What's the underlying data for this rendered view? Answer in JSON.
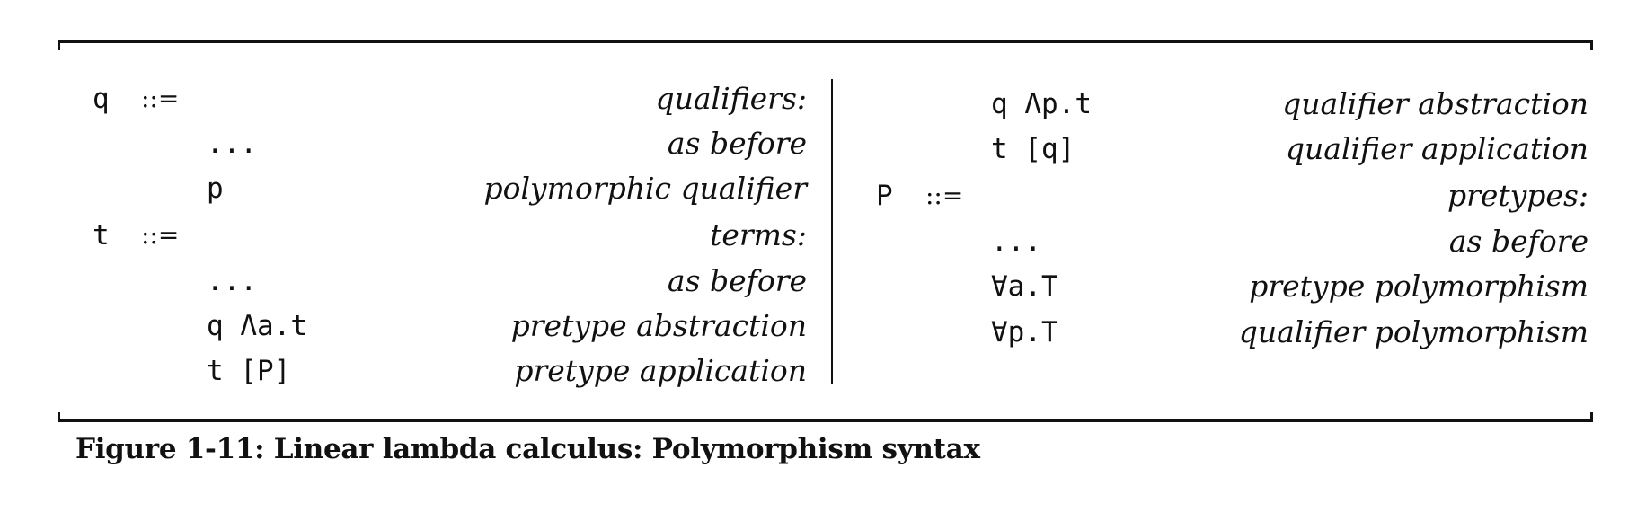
{
  "figure": {
    "left_column": [
      {
        "nt": "q",
        "def": "::=",
        "term": "",
        "desc": "qualifiers:"
      },
      {
        "nt": "",
        "def": "",
        "term": "...",
        "desc": "as before"
      },
      {
        "nt": "",
        "def": "",
        "term": "p",
        "desc": "polymorphic qualifier"
      },
      {
        "nt": "t",
        "def": "::=",
        "term": "",
        "desc": "terms:"
      },
      {
        "nt": "",
        "def": "",
        "term": "...",
        "desc": "as before"
      },
      {
        "nt": "",
        "def": "",
        "term": "q Λa.t",
        "desc": "pretype abstraction"
      },
      {
        "nt": "",
        "def": "",
        "term": "t [P]",
        "desc": "pretype application"
      }
    ],
    "right_column": [
      {
        "nt": "",
        "def": "",
        "term": "q Λp.t",
        "desc": "qualifier abstraction"
      },
      {
        "nt": "",
        "def": "",
        "term": "t [q]",
        "desc": "qualifier application"
      },
      {
        "nt": "P",
        "def": "::=",
        "term": "",
        "desc": "pretypes:"
      },
      {
        "nt": "",
        "def": "",
        "term": "...",
        "desc": "as before"
      },
      {
        "nt": "",
        "def": "",
        "term": "∀a.T",
        "desc": "pretype polymorphism"
      },
      {
        "nt": "",
        "def": "",
        "term": "∀p.T",
        "desc": "qualifier polymorphism"
      }
    ],
    "caption": "Figure 1-11: Linear lambda calculus: Polymorphism syntax"
  }
}
